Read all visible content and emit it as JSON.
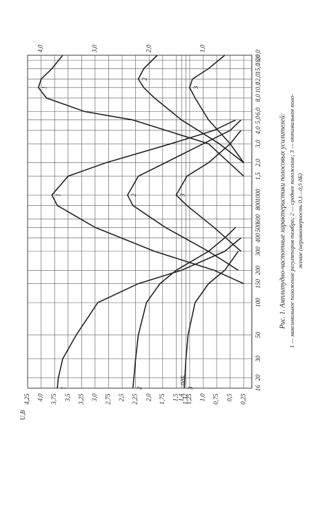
{
  "chart_data": {
    "type": "line",
    "title": "Рис. 1. Амплитудно-частотные характеристики полосовых усилителей:",
    "caption_lines": [
      "1 — максимальное положение регуляторов тембра; 2 — среднее положение; 3 — оптимальное поло-",
      "жение (неравномерность 0,1—0,5 дБ)"
    ],
    "y_label": "U,B",
    "annotation": "0дБ",
    "x_scale": "log",
    "grid": true,
    "color": "#222222",
    "xlim": [
      16,
      20000
    ],
    "ylim": [
      0.1,
      4.25
    ],
    "xticks": [
      16,
      20,
      30,
      50,
      100,
      150,
      200,
      300,
      400,
      500,
      600,
      800,
      1000,
      {
        "value": 1500,
        "label": "1,5"
      },
      {
        "value": 2000,
        "label": "2,0"
      },
      {
        "value": 3000,
        "label": "3,0"
      },
      {
        "value": 4000,
        "label": "4,0"
      },
      {
        "value": 5000,
        "label": "5,0"
      },
      {
        "value": 6000,
        "label": "6,0"
      },
      {
        "value": 8000,
        "label": "8,0"
      },
      {
        "value": 10000,
        "label": "10,0"
      },
      {
        "value": 12000,
        "label": "12,0"
      },
      {
        "value": 15000,
        "label": "15,0"
      },
      {
        "value": 18000,
        "label": "18,0"
      },
      {
        "value": 20000,
        "label": "20,0"
      }
    ],
    "yticks": [
      {
        "value": 0.25,
        "label": "0,25"
      },
      {
        "value": 0.5,
        "label": "0,5"
      },
      {
        "value": 0.75,
        "label": "0,75"
      },
      {
        "value": 1.0,
        "label": "1,0"
      },
      {
        "value": 1.25,
        "label": "1,25"
      },
      {
        "value": 1.32,
        "label": "1,32"
      },
      {
        "value": 1.4,
        "label": "1,4"
      },
      {
        "value": 1.5,
        "label": "1,5"
      },
      {
        "value": 1.75,
        "label": "1,75"
      },
      {
        "value": 2.0,
        "label": "2,0"
      },
      {
        "value": 2.25,
        "label": "2,25"
      },
      {
        "value": 2.5,
        "label": "2,5"
      },
      {
        "value": 2.75,
        "label": "2,75"
      },
      {
        "value": 3.0,
        "label": "3,0"
      },
      {
        "value": 3.25,
        "label": "3,25"
      },
      {
        "value": 3.5,
        "label": "3,5"
      },
      {
        "value": 3.75,
        "label": "3,75"
      },
      {
        "value": 4.0,
        "label": "4,0"
      },
      {
        "value": 4.25,
        "label": "4,25"
      }
    ],
    "top_ticks": [
      {
        "value": 4.0,
        "label": "4,0"
      },
      {
        "value": 3.0,
        "label": "3,0"
      },
      {
        "value": 2.0,
        "label": "2,0"
      },
      {
        "value": 1.0,
        "label": "1,0"
      }
    ],
    "series": [
      {
        "name": "1",
        "x": [
          16,
          20,
          30,
          50,
          100,
          150,
          200,
          300,
          400
        ],
        "values": [
          3.7,
          3.68,
          3.6,
          3.35,
          2.95,
          2.2,
          1.4,
          0.6,
          0.3
        ]
      },
      {
        "name": "2",
        "x": [
          16,
          30,
          50,
          100,
          150,
          200,
          300,
          400,
          500
        ],
        "values": [
          2.3,
          2.25,
          2.2,
          2.05,
          1.8,
          1.5,
          0.9,
          0.6,
          0.4
        ]
      },
      {
        "name": "3",
        "x": [
          16,
          30,
          50,
          100,
          150,
          200,
          300
        ],
        "values": [
          1.35,
          1.32,
          1.28,
          1.15,
          0.9,
          0.6,
          0.35
        ]
      },
      {
        "name": "1",
        "x": [
          150,
          200,
          300,
          500,
          800,
          1000,
          1500,
          2000,
          3000,
          4000,
          5000
        ],
        "values": [
          0.25,
          0.8,
          1.9,
          3.0,
          3.7,
          3.8,
          3.5,
          2.8,
          1.6,
          0.8,
          0.4
        ]
      },
      {
        "name": "2",
        "x": [
          200,
          300,
          500,
          800,
          1000,
          1500,
          2000,
          3000,
          4000,
          5000
        ],
        "values": [
          0.35,
          0.9,
          1.7,
          2.3,
          2.4,
          2.2,
          1.7,
          1.0,
          0.5,
          0.3
        ]
      },
      {
        "name": "3",
        "x": [
          300,
          500,
          800,
          1000,
          1500,
          2000,
          3000,
          4000
        ],
        "values": [
          0.3,
          0.8,
          1.3,
          1.5,
          1.3,
          0.9,
          0.5,
          0.3
        ]
      },
      {
        "name": "1",
        "x": [
          1500,
          3000,
          5000,
          6000,
          8000,
          10000,
          12000,
          15000,
          20000
        ],
        "values": [
          0.25,
          0.9,
          2.3,
          3.2,
          3.9,
          4.05,
          4.0,
          3.8,
          3.6
        ]
      },
      {
        "name": "2",
        "x": [
          2000,
          3000,
          5000,
          8000,
          10000,
          12000,
          15000,
          20000
        ],
        "values": [
          0.25,
          0.7,
          1.4,
          1.9,
          2.1,
          2.2,
          2.1,
          1.85
        ]
      },
      {
        "name": "3",
        "x": [
          2000,
          3000,
          5000,
          8000,
          10000,
          12000,
          15000,
          20000
        ],
        "values": [
          0.25,
          0.5,
          0.9,
          1.15,
          1.25,
          1.2,
          0.9,
          0.6
        ]
      }
    ]
  }
}
